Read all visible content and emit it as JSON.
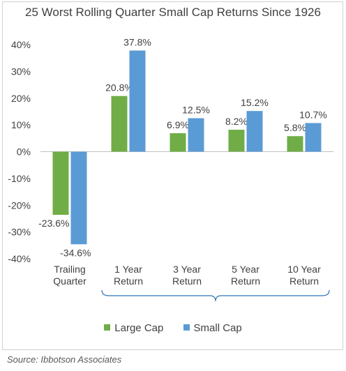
{
  "chart_data": {
    "type": "bar",
    "title": "25 Worst Rolling Quarter Small Cap Returns Since 1926",
    "categories": [
      [
        "Trailing",
        "Quarter"
      ],
      [
        "1 Year",
        "Return"
      ],
      [
        "3 Year",
        "Return"
      ],
      [
        "5 Year",
        "Return"
      ],
      [
        "10 Year",
        "Return"
      ]
    ],
    "series": [
      {
        "name": "Large Cap",
        "values": [
          -23.6,
          20.8,
          6.9,
          8.2,
          5.8
        ],
        "labels": [
          "-23.6%",
          "20.8%",
          "6.9%",
          "8.2%",
          "5.8%"
        ],
        "color": "#70ad47"
      },
      {
        "name": "Small Cap",
        "values": [
          -34.6,
          37.8,
          12.5,
          15.2,
          10.7
        ],
        "labels": [
          "-34.6%",
          "37.8%",
          "12.5%",
          "15.2%",
          "10.7%"
        ],
        "color": "#5b9bd5"
      }
    ],
    "ylim": [
      -40,
      40
    ],
    "yticks": [
      40,
      30,
      20,
      10,
      0,
      -10,
      -20,
      -30,
      -40
    ],
    "ytick_labels": [
      "40%",
      "30%",
      "20%",
      "10%",
      "0%",
      "-10%",
      "-20%",
      "-30%",
      "-40%"
    ],
    "grid": false,
    "legend_position": "bottom",
    "bracket_color": "#2e75b6"
  },
  "source": "Source: Ibbotson Associates"
}
